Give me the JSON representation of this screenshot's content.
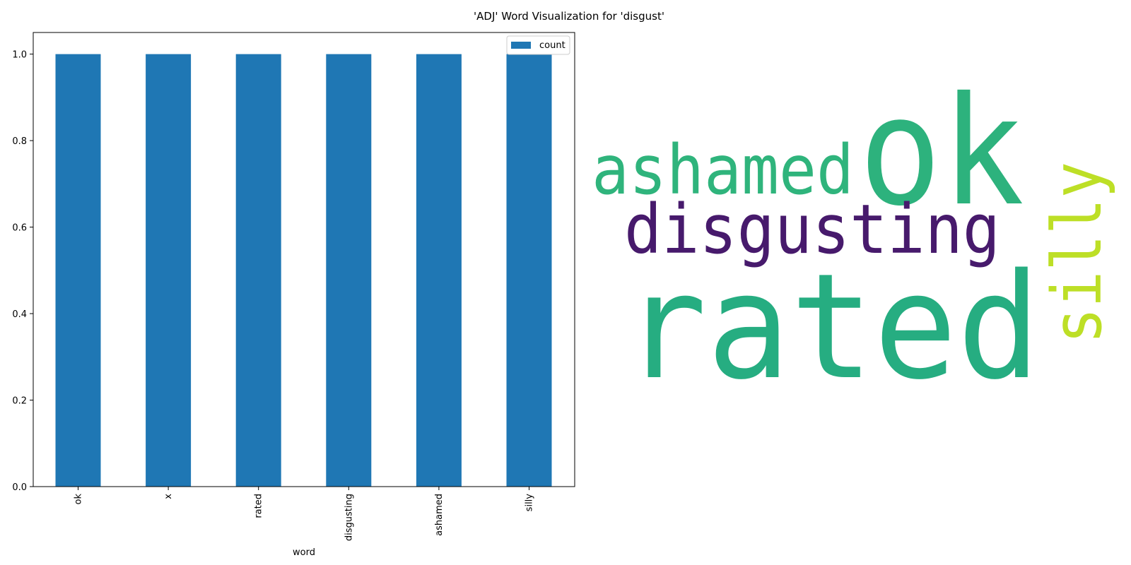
{
  "figure_title": "'ADJ' Word Visualization for 'disgust'",
  "chart_data": [
    {
      "type": "bar",
      "categories": [
        "ok",
        "x",
        "rated",
        "disgusting",
        "ashamed",
        "silly"
      ],
      "series": [
        {
          "name": "count",
          "values": [
            1,
            1,
            1,
            1,
            1,
            1
          ],
          "color": "#1f77b4"
        }
      ],
      "xlabel": "word",
      "ylabel": "",
      "ylim": [
        0,
        1.05
      ],
      "yticks": [
        "0.0",
        "0.2",
        "0.4",
        "0.6",
        "0.8",
        "1.0"
      ],
      "ytick_values": [
        0,
        0.2,
        0.4,
        0.6,
        0.8,
        1.0
      ],
      "x_tick_rotation": "vertical",
      "grid": false,
      "legend": {
        "placement": "top-right",
        "entries": [
          "count"
        ]
      }
    },
    {
      "type": "wordcloud",
      "words": [
        {
          "text": "rated",
          "color": "#26ad81",
          "orientation": "horizontal"
        },
        {
          "text": "ok",
          "color": "#2db27d",
          "orientation": "horizontal"
        },
        {
          "text": "disgusting",
          "color": "#471a6c",
          "orientation": "horizontal"
        },
        {
          "text": "ashamed",
          "color": "#2fb47c",
          "orientation": "horizontal"
        },
        {
          "text": "silly",
          "color": "#bddf26",
          "orientation": "vertical"
        }
      ]
    }
  ]
}
